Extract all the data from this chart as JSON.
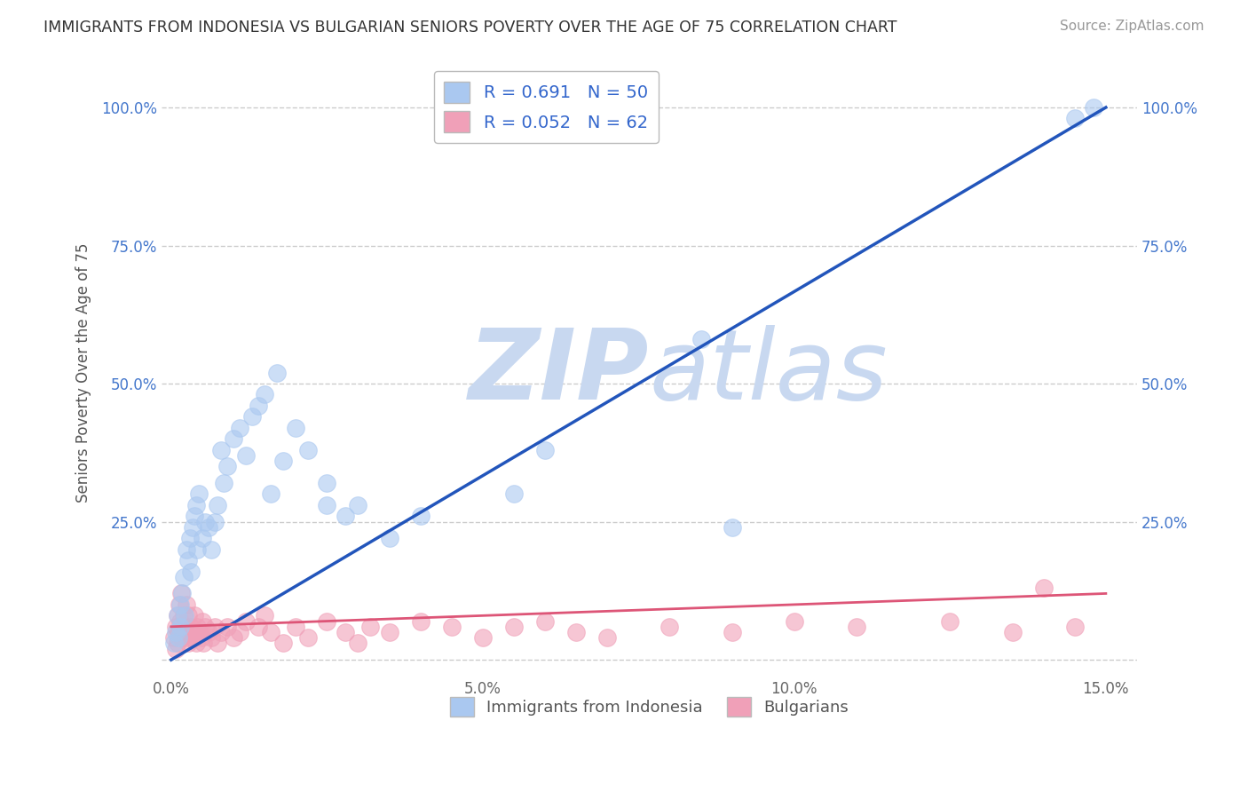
{
  "title": "IMMIGRANTS FROM INDONESIA VS BULGARIAN SENIORS POVERTY OVER THE AGE OF 75 CORRELATION CHART",
  "source": "Source: ZipAtlas.com",
  "ylabel": "Seniors Poverty Over the Age of 75",
  "xlim": [
    -0.15,
    15.5
  ],
  "ylim": [
    -3,
    107
  ],
  "blue_R": 0.691,
  "blue_N": 50,
  "pink_R": 0.052,
  "pink_N": 62,
  "blue_color": "#aac8f0",
  "pink_color": "#f0a0b8",
  "blue_line_color": "#2255bb",
  "pink_line_color": "#dd5577",
  "watermark_color": "#c8d8f0",
  "legend_label_blue": "Immigrants from Indonesia",
  "legend_label_pink": "Bulgarians",
  "blue_line_x0": 0.0,
  "blue_line_y0": 0.0,
  "blue_line_x1": 15.0,
  "blue_line_y1": 100.0,
  "pink_line_x0": 0.0,
  "pink_line_y0": 6.0,
  "pink_line_x1": 15.0,
  "pink_line_y1": 12.0,
  "blue_x": [
    0.05,
    0.08,
    0.1,
    0.12,
    0.15,
    0.15,
    0.18,
    0.2,
    0.22,
    0.25,
    0.28,
    0.3,
    0.32,
    0.35,
    0.38,
    0.4,
    0.42,
    0.45,
    0.5,
    0.55,
    0.6,
    0.65,
    0.7,
    0.75,
    0.8,
    0.85,
    0.9,
    1.0,
    1.1,
    1.2,
    1.3,
    1.4,
    1.5,
    1.6,
    1.7,
    1.8,
    2.0,
    2.2,
    2.5,
    2.5,
    2.8,
    3.0,
    3.5,
    4.0,
    5.5,
    6.0,
    8.5,
    9.0,
    14.5,
    14.8
  ],
  "blue_y": [
    3,
    5,
    8,
    4,
    10,
    6,
    12,
    15,
    8,
    20,
    18,
    22,
    16,
    24,
    26,
    28,
    20,
    30,
    22,
    25,
    24,
    20,
    25,
    28,
    38,
    32,
    35,
    40,
    42,
    37,
    44,
    46,
    48,
    30,
    52,
    36,
    42,
    38,
    28,
    32,
    26,
    28,
    22,
    26,
    30,
    38,
    58,
    24,
    98,
    100
  ],
  "pink_x": [
    0.05,
    0.07,
    0.08,
    0.1,
    0.1,
    0.12,
    0.13,
    0.15,
    0.16,
    0.18,
    0.2,
    0.22,
    0.24,
    0.25,
    0.27,
    0.28,
    0.3,
    0.32,
    0.35,
    0.38,
    0.4,
    0.42,
    0.45,
    0.48,
    0.5,
    0.52,
    0.55,
    0.6,
    0.65,
    0.7,
    0.75,
    0.8,
    0.9,
    1.0,
    1.1,
    1.2,
    1.4,
    1.5,
    1.6,
    1.8,
    2.0,
    2.2,
    2.5,
    2.8,
    3.0,
    3.2,
    3.5,
    4.0,
    4.5,
    5.0,
    5.5,
    6.0,
    6.5,
    7.0,
    8.0,
    9.0,
    10.0,
    11.0,
    12.5,
    13.5,
    14.0,
    14.5
  ],
  "pink_y": [
    4,
    2,
    6,
    3,
    8,
    5,
    10,
    7,
    12,
    4,
    8,
    6,
    4,
    10,
    3,
    8,
    5,
    6,
    4,
    8,
    3,
    6,
    5,
    4,
    7,
    3,
    6,
    5,
    4,
    6,
    3,
    5,
    6,
    4,
    5,
    7,
    6,
    8,
    5,
    3,
    6,
    4,
    7,
    5,
    3,
    6,
    5,
    7,
    6,
    4,
    6,
    7,
    5,
    4,
    6,
    5,
    7,
    6,
    7,
    5,
    13,
    6
  ]
}
